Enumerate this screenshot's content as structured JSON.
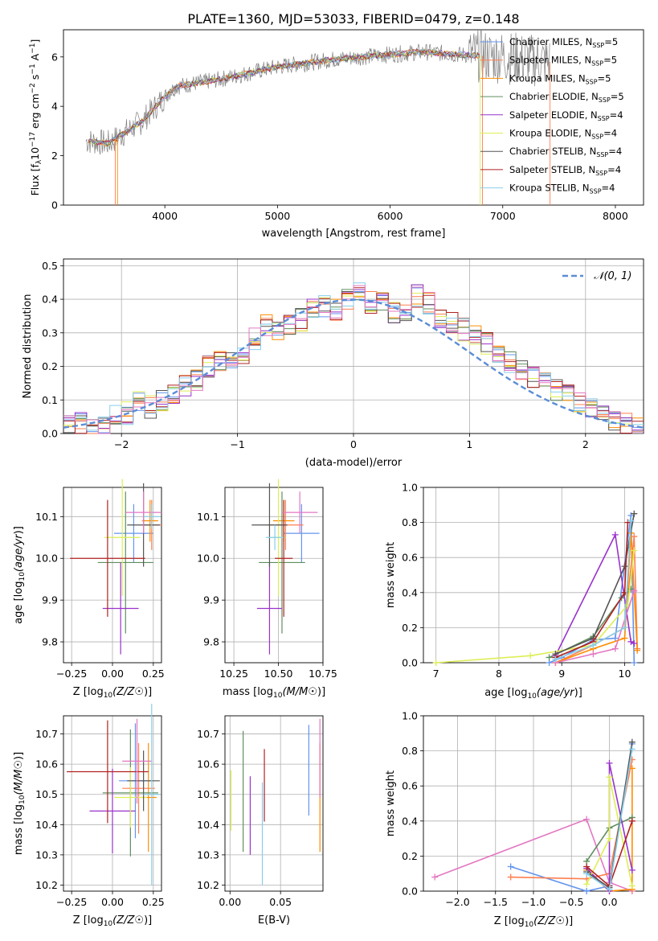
{
  "figure_title": "PLATE=1360, MJD=53033, FIBERID=0479, z=0.148",
  "legend_top": [
    {
      "label": "Chabrier MILES, N",
      "sub": "SSP",
      "tail": "=5",
      "color": "#6495ED"
    },
    {
      "label": "Salpeter MILES, N",
      "sub": "SSP",
      "tail": "=5",
      "color": "#FF7F50"
    },
    {
      "label": "Kroupa MILES, N",
      "sub": "SSP",
      "tail": "=5",
      "color": "#FF8C00"
    },
    {
      "label": "Chabrier ELODIE, N",
      "sub": "SSP",
      "tail": "=5",
      "color": "#5F8F5F"
    },
    {
      "label": "Salpeter ELODIE, N",
      "sub": "SSP",
      "tail": "=4",
      "color": "#9932CC"
    },
    {
      "label": "Kroupa ELODIE, N",
      "sub": "SSP",
      "tail": "=4",
      "color": "#DDEE55"
    },
    {
      "label": "Chabrier STELIB, N",
      "sub": "SSP",
      "tail": "=4",
      "color": "#555555"
    },
    {
      "label": "Salpeter STELIB, N",
      "sub": "SSP",
      "tail": "=4",
      "color": "#B22222"
    },
    {
      "label": "Kroupa STELIB, N",
      "sub": "SSP",
      "tail": "=4",
      "color": "#87CEEB"
    }
  ],
  "colors": {
    "data": "#808080",
    "model_cyan": "#7FD8D8",
    "gauss": "#5B8DD6",
    "grid": "#b0b0b0",
    "pink": "#E377C2"
  },
  "chart_data": [
    {
      "id": "spectrum",
      "type": "line",
      "xlabel": "wavelength [Angstrom, rest frame]",
      "ylabel": "Flux [f",
      "ylabel_parts": {
        "a": "Flux [f",
        "sub": "λ",
        "b": "10",
        "sup1": "−17",
        "c": " erg cm",
        "sup2": "−2",
        "d": " s",
        "sup3": "−1",
        "e": " A",
        "sup4": "−1",
        "f": "]"
      },
      "xlim": [
        3100,
        8250
      ],
      "ylim": [
        0,
        7.1
      ],
      "xticks": [
        4000,
        5000,
        6000,
        7000,
        8000
      ],
      "yticks": [
        0,
        2,
        4,
        6
      ],
      "grid": false,
      "anchors_x": [
        3300,
        3500,
        3800,
        4000,
        4100,
        4500,
        5000,
        5500,
        6000,
        6300,
        6600,
        7000,
        7400
      ],
      "anchors_y": [
        2.6,
        2.5,
        3.4,
        4.4,
        4.8,
        5.1,
        5.6,
        5.9,
        6.1,
        6.2,
        6.1,
        6.0,
        5.8
      ],
      "legend_position": "upper right"
    },
    {
      "id": "residuals",
      "type": "line",
      "xlabel": "(data-model)/error",
      "ylabel": "Normed distribution",
      "xlim": [
        -2.5,
        2.5
      ],
      "ylim": [
        0,
        0.52
      ],
      "xticks": [
        -2,
        -1,
        0,
        1,
        2
      ],
      "xtick_labels": [
        "−2",
        "−1",
        "0",
        "1",
        "2"
      ],
      "yticks": [
        0.0,
        0.1,
        0.2,
        0.3,
        0.4,
        0.5
      ],
      "ytick_labels": [
        "0.0",
        "0.1",
        "0.2",
        "0.3",
        "0.4",
        "0.5"
      ],
      "grid": true,
      "legend": "𝒩(0, 1)",
      "legend_position": "upper right",
      "bin_width": 0.1,
      "histogram_example": [
        0.03,
        0.03,
        0.02,
        0.03,
        0.05,
        0.06,
        0.09,
        0.08,
        0.1,
        0.12,
        0.14,
        0.16,
        0.2,
        0.22,
        0.21,
        0.24,
        0.28,
        0.32,
        0.31,
        0.33,
        0.34,
        0.37,
        0.38,
        0.37,
        0.4,
        0.42,
        0.39,
        0.4,
        0.36,
        0.37,
        0.41,
        0.39,
        0.35,
        0.33,
        0.31,
        0.3,
        0.27,
        0.24,
        0.21,
        0.19,
        0.17,
        0.15,
        0.13,
        0.11,
        0.09,
        0.07,
        0.05,
        0.04,
        0.03,
        0.02
      ]
    },
    {
      "id": "age_vs_Z",
      "type": "scatter",
      "xlabel": "Z [log10(Z/Z☉)]",
      "ylabel": "age  [log10(age/yr)]",
      "xlim": [
        -0.3,
        0.3
      ],
      "ylim": [
        9.75,
        10.17
      ],
      "xticks": [
        -0.25,
        0.0,
        0.25
      ],
      "xtick_labels": [
        "−0.25",
        "0.00",
        "0.25"
      ],
      "yticks": [
        9.8,
        9.9,
        10.0,
        10.1
      ],
      "ytick_labels": [
        "9.8",
        "9.9",
        "10.0",
        "10.1"
      ],
      "grid": true,
      "points": [
        {
          "x": 0.13,
          "y": 10.06,
          "xerr": 0.12,
          "yerr": 0.07,
          "color": "#6495ED"
        },
        {
          "x": 0.24,
          "y": 10.08,
          "xerr": 0.06,
          "yerr": 0.06,
          "color": "#FF7F50"
        },
        {
          "x": 0.23,
          "y": 10.09,
          "xerr": 0.05,
          "yerr": 0.05,
          "color": "#FF8C00"
        },
        {
          "x": 0.08,
          "y": 9.99,
          "xerr": 0.17,
          "yerr": 0.17,
          "color": "#5F8F5F"
        },
        {
          "x": 0.05,
          "y": 9.88,
          "xerr": 0.11,
          "yerr": 0.11,
          "color": "#9932CC"
        },
        {
          "x": 0.06,
          "y": 10.05,
          "xerr": 0.11,
          "yerr": 0.14,
          "color": "#DDEE55"
        },
        {
          "x": 0.19,
          "y": 10.08,
          "xerr": 0.1,
          "yerr": 0.1,
          "color": "#555555"
        },
        {
          "x": -0.03,
          "y": 10.0,
          "xerr": 0.23,
          "yerr": 0.14,
          "color": "#B22222"
        },
        {
          "x": 0.19,
          "y": 10.11,
          "xerr": 0.11,
          "yerr": 0.05,
          "color": "#E377C2"
        },
        {
          "x": 0.24,
          "y": 10.1,
          "xerr": 0.05,
          "yerr": 0.03,
          "color": "#87CEEB"
        }
      ]
    },
    {
      "id": "age_vs_mass",
      "type": "scatter",
      "xlabel": "mass [log10(M/M☉)]",
      "ylabel": "",
      "xlim": [
        10.2,
        10.75
      ],
      "ylim": [
        9.75,
        10.17
      ],
      "xticks": [
        10.25,
        10.5,
        10.75
      ],
      "xtick_labels": [
        "10.25",
        "10.50",
        "10.75"
      ],
      "yticks": [
        9.8,
        9.9,
        10.0,
        10.1
      ],
      "ytick_labels": [
        "9.8",
        "9.9",
        "10.0",
        "10.1"
      ],
      "grid": true,
      "points": [
        {
          "x": 10.63,
          "y": 10.06,
          "xerr": 0.1,
          "yerr": 0.07,
          "color": "#6495ED"
        },
        {
          "x": 10.54,
          "y": 10.08,
          "xerr": 0.1,
          "yerr": 0.06,
          "color": "#FF7F50"
        },
        {
          "x": 10.53,
          "y": 10.09,
          "xerr": 0.06,
          "yerr": 0.05,
          "color": "#FF8C00"
        },
        {
          "x": 10.52,
          "y": 9.99,
          "xerr": 0.13,
          "yerr": 0.17,
          "color": "#5F8F5F"
        },
        {
          "x": 10.45,
          "y": 9.88,
          "xerr": 0.07,
          "yerr": 0.11,
          "color": "#9932CC"
        },
        {
          "x": 10.5,
          "y": 10.05,
          "xerr": 0.04,
          "yerr": 0.14,
          "color": "#DDEE55"
        },
        {
          "x": 10.45,
          "y": 10.08,
          "xerr": 0.1,
          "yerr": 0.1,
          "color": "#555555"
        },
        {
          "x": 10.53,
          "y": 10.0,
          "xerr": 0.05,
          "yerr": 0.14,
          "color": "#B22222"
        },
        {
          "x": 10.62,
          "y": 10.11,
          "xerr": 0.1,
          "yerr": 0.05,
          "color": "#E377C2"
        },
        {
          "x": 10.48,
          "y": 10.05,
          "xerr": 0.05,
          "yerr": 0.03,
          "color": "#87CEEB"
        }
      ]
    },
    {
      "id": "mw_vs_age",
      "type": "line",
      "xlabel": "age  [log10(age/yr)]",
      "ylabel": "mass weight",
      "xlim": [
        6.8,
        10.3
      ],
      "ylim": [
        0,
        1
      ],
      "xticks": [
        7,
        8,
        9,
        10
      ],
      "yticks": [
        0.0,
        0.2,
        0.4,
        0.6,
        0.8,
        1.0
      ],
      "ytick_labels": [
        "0.0",
        "0.2",
        "0.4",
        "0.6",
        "0.8",
        "1.0"
      ],
      "grid": true,
      "series": [
        {
          "color": "#6495ED",
          "x": [
            8.8,
            9.0,
            9.5,
            9.85,
            10.1,
            10.15
          ],
          "y": [
            0.0,
            0.03,
            0.13,
            0.14,
            0.84,
            0.0
          ]
        },
        {
          "color": "#FF7F50",
          "x": [
            8.9,
            9.5,
            10.0,
            10.15,
            10.2
          ],
          "y": [
            0.0,
            0.1,
            0.2,
            0.72,
            0.08
          ]
        },
        {
          "color": "#FF8C00",
          "x": [
            8.9,
            9.5,
            10.0,
            10.1,
            10.2
          ],
          "y": [
            0.0,
            0.08,
            0.14,
            0.74,
            0.07
          ]
        },
        {
          "color": "#5F8F5F",
          "x": [
            8.8,
            9.5,
            9.95,
            10.1
          ],
          "y": [
            0.03,
            0.15,
            0.37,
            0.42
          ]
        },
        {
          "color": "#9932CC",
          "x": [
            8.9,
            9.85,
            10.1,
            10.15
          ],
          "y": [
            0.04,
            0.73,
            0.12,
            0.11
          ]
        },
        {
          "color": "#DDEE55",
          "x": [
            7.0,
            8.5,
            9.5,
            10.05,
            10.15
          ],
          "y": [
            0.0,
            0.04,
            0.1,
            0.33,
            0.64
          ]
        },
        {
          "color": "#555555",
          "x": [
            8.9,
            9.5,
            10.0,
            10.15
          ],
          "y": [
            0.05,
            0.14,
            0.55,
            0.85
          ]
        },
        {
          "color": "#B22222",
          "x": [
            8.9,
            9.5,
            10.0,
            10.05
          ],
          "y": [
            0.03,
            0.12,
            0.4,
            0.8
          ]
        },
        {
          "color": "#E377C2",
          "x": [
            8.9,
            9.5,
            9.85,
            10.15
          ],
          "y": [
            0.0,
            0.05,
            0.08,
            0.41
          ]
        },
        {
          "color": "#87CEEB",
          "x": [
            8.9,
            9.5,
            10.0,
            10.1
          ],
          "y": [
            0.02,
            0.1,
            0.2,
            0.81
          ]
        }
      ]
    },
    {
      "id": "mass_vs_Z",
      "type": "scatter",
      "xlabel": "Z [log10(Z/Z☉)]",
      "ylabel": "mass [log10(M/M☉)]",
      "xlim": [
        -0.3,
        0.3
      ],
      "ylim": [
        10.18,
        10.76
      ],
      "xticks": [
        -0.25,
        0.0,
        0.25
      ],
      "xtick_labels": [
        "−0.25",
        "0.00",
        "0.25"
      ],
      "yticks": [
        10.2,
        10.3,
        10.4,
        10.5,
        10.6,
        10.7
      ],
      "ytick_labels": [
        "10.2",
        "10.3",
        "10.4",
        "10.5",
        "10.6",
        "10.7"
      ],
      "grid": true,
      "points": [
        {
          "x": 0.14,
          "y": 10.545,
          "xerr": 0.1,
          "yerr": 0.19,
          "color": "#6495ED"
        },
        {
          "x": 0.16,
          "y": 10.52,
          "xerr": 0.1,
          "yerr": 0.15,
          "color": "#FF7F50"
        },
        {
          "x": 0.22,
          "y": 10.49,
          "xerr": 0.05,
          "yerr": 0.18,
          "color": "#FF8C00"
        },
        {
          "x": 0.11,
          "y": 10.505,
          "xerr": 0.17,
          "yerr": 0.21,
          "color": "#5F8F5F"
        },
        {
          "x": 0.0,
          "y": 10.445,
          "xerr": 0.14,
          "yerr": 0.14,
          "color": "#9932CC"
        },
        {
          "x": 0.11,
          "y": 10.49,
          "xerr": 0.1,
          "yerr": 0.1,
          "color": "#DDEE55"
        },
        {
          "x": 0.19,
          "y": 10.545,
          "xerr": 0.1,
          "yerr": 0.1,
          "color": "#555555"
        },
        {
          "x": -0.03,
          "y": 10.575,
          "xerr": 0.25,
          "yerr": 0.17,
          "color": "#B22222"
        },
        {
          "x": 0.15,
          "y": 10.61,
          "xerr": 0.09,
          "yerr": 0.14,
          "color": "#E377C2"
        },
        {
          "x": 0.24,
          "y": 10.5,
          "xerr": 0.05,
          "yerr": 0.3,
          "color": "#87CEEB"
        }
      ]
    },
    {
      "id": "mass_vs_EBV",
      "type": "scatter",
      "xlabel": "E(B-V)",
      "ylabel": "",
      "xlim": [
        -0.005,
        0.092
      ],
      "ylim": [
        10.18,
        10.76
      ],
      "xticks": [
        0.0,
        0.05
      ],
      "xtick_labels": [
        "0.00",
        "0.05"
      ],
      "yticks": [
        10.2,
        10.3,
        10.4,
        10.5,
        10.6,
        10.7
      ],
      "ytick_labels": [
        "10.2",
        "10.3",
        "10.4",
        "10.5",
        "10.6",
        "10.7"
      ],
      "grid": true,
      "points": [
        {
          "x": 0.078,
          "y": 10.58,
          "yerr": 0.15,
          "color": "#6495ED"
        },
        {
          "x": 0.089,
          "y": 10.49,
          "yerr": 0.18,
          "color": "#FF8C00"
        },
        {
          "x": 0.013,
          "y": 10.51,
          "yerr": 0.2,
          "color": "#5F8F5F"
        },
        {
          "x": 0.02,
          "y": 10.43,
          "yerr": 0.13,
          "color": "#9932CC"
        },
        {
          "x": 0.001,
          "y": 10.48,
          "yerr": 0.1,
          "color": "#DDEE55"
        },
        {
          "x": 0.034,
          "y": 10.53,
          "yerr": 0.12,
          "color": "#B22222"
        },
        {
          "x": 0.032,
          "y": 10.37,
          "yerr": 0.17,
          "color": "#87CEEB"
        },
        {
          "x": 0.089,
          "y": 10.62,
          "yerr": 0.13,
          "color": "#E377C2"
        }
      ]
    },
    {
      "id": "mw_vs_Z",
      "type": "line",
      "xlabel": "Z [log10(Z/Z☉)]",
      "ylabel": "mass weight",
      "xlim": [
        -2.45,
        0.45
      ],
      "ylim": [
        0,
        1
      ],
      "xticks": [
        -2.0,
        -1.5,
        -1.0,
        -0.5,
        0.0
      ],
      "xtick_labels": [
        "−2.0",
        "−1.5",
        "−1.0",
        "−0.5",
        "0.0"
      ],
      "yticks": [
        0.0,
        0.2,
        0.4,
        0.6,
        0.8,
        1.0
      ],
      "ytick_labels": [
        "0.0",
        "0.2",
        "0.4",
        "0.6",
        "0.8",
        "1.0"
      ],
      "grid": true,
      "series": [
        {
          "color": "#E377C2",
          "x": [
            -2.3,
            -0.3,
            0.0,
            0.3
          ],
          "y": [
            0.08,
            0.41,
            0.05,
            0.0
          ]
        },
        {
          "color": "#6495ED",
          "x": [
            -1.3,
            -0.3,
            0.0,
            0.3
          ],
          "y": [
            0.14,
            0.0,
            0.03,
            0.84
          ]
        },
        {
          "color": "#FF7F50",
          "x": [
            -1.3,
            -0.3,
            0.0,
            0.3
          ],
          "y": [
            0.08,
            0.07,
            0.1,
            0.75
          ]
        },
        {
          "color": "#FF8C00",
          "x": [
            -0.3,
            0.0,
            0.3,
            0.3
          ],
          "y": [
            0.12,
            0.0,
            0.01,
            0.7
          ]
        },
        {
          "color": "#5F8F5F",
          "x": [
            -0.3,
            0.0,
            0.3
          ],
          "y": [
            0.17,
            0.36,
            0.42
          ]
        },
        {
          "color": "#9932CC",
          "x": [
            -0.3,
            0.0,
            0.0,
            0.3
          ],
          "y": [
            0.13,
            0.0,
            0.73,
            0.12
          ]
        },
        {
          "color": "#DDEE55",
          "x": [
            -0.3,
            0.0,
            0.0,
            0.3
          ],
          "y": [
            0.04,
            0.3,
            0.65,
            0.03
          ]
        },
        {
          "color": "#555555",
          "x": [
            -0.3,
            0.0,
            0.3
          ],
          "y": [
            0.11,
            0.02,
            0.85
          ]
        },
        {
          "color": "#B22222",
          "x": [
            -0.3,
            0.0,
            0.3
          ],
          "y": [
            0.14,
            0.03,
            0.4
          ]
        },
        {
          "color": "#87CEEB",
          "x": [
            -0.3,
            0.0,
            0.3
          ],
          "y": [
            0.1,
            0.01,
            0.81
          ]
        }
      ]
    }
  ]
}
